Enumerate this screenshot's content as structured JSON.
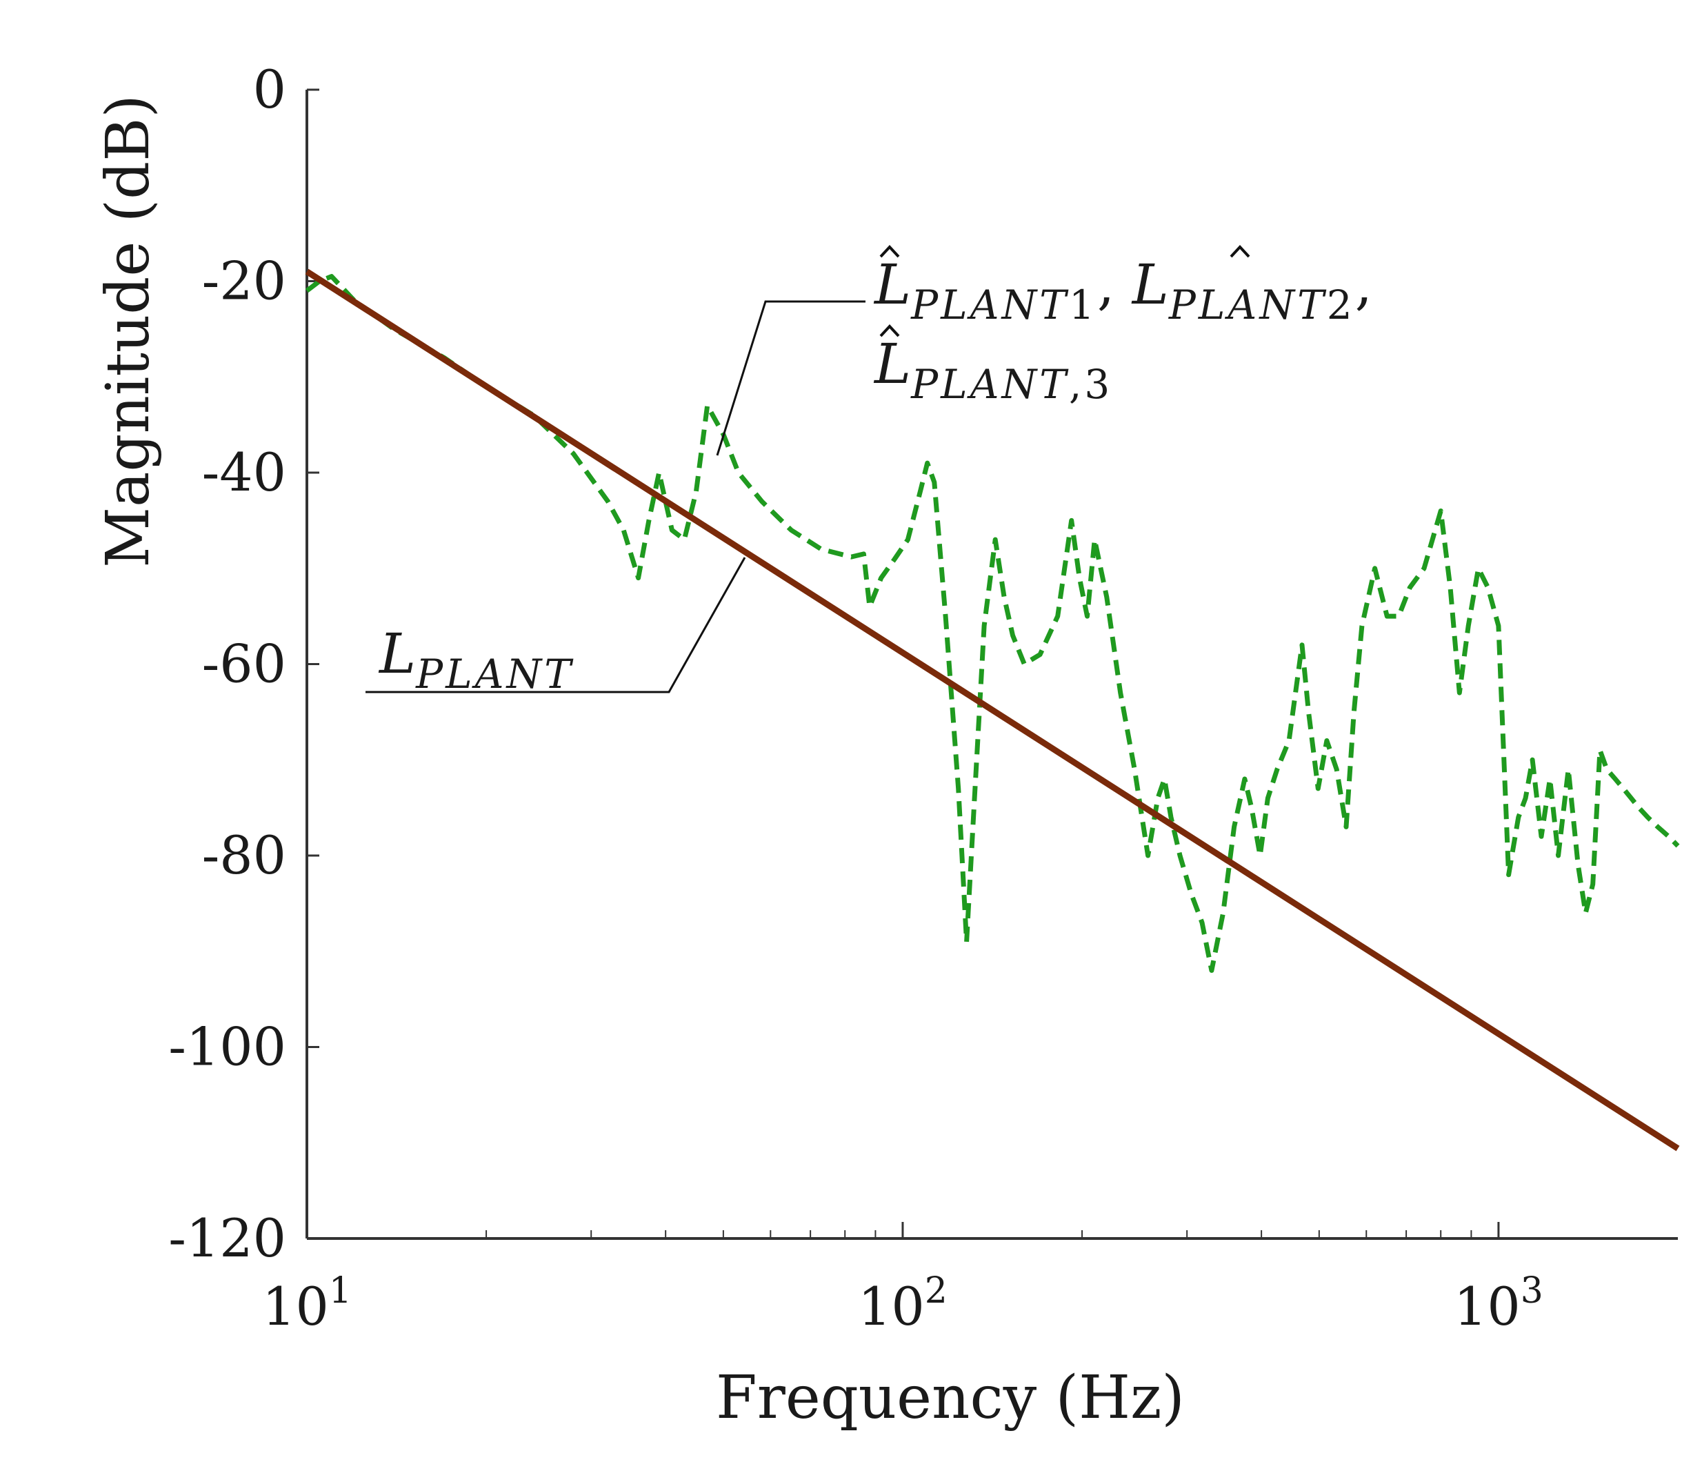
{
  "chart_data": {
    "type": "line",
    "xscale": "log",
    "xlim": [
      10,
      2000
    ],
    "ylim": [
      -120,
      0
    ],
    "xlabel": "Frequency  (Hz)",
    "ylabel": "Magnitude (dB)",
    "x_ticks": [
      {
        "value": 10,
        "base": "10",
        "exp": "1"
      },
      {
        "value": 100,
        "base": "10",
        "exp": "2"
      },
      {
        "value": 1000,
        "base": "10",
        "exp": "3"
      }
    ],
    "y_ticks": [
      {
        "value": 0,
        "label": "0"
      },
      {
        "value": -20,
        "label": "-20"
      },
      {
        "value": -40,
        "label": "-40"
      },
      {
        "value": -60,
        "label": "-60"
      },
      {
        "value": -80,
        "label": "-80"
      },
      {
        "value": -100,
        "label": "-100"
      },
      {
        "value": -120,
        "label": "-120"
      }
    ],
    "series": [
      {
        "name": "L_PLANT",
        "color": "#7a2a0a",
        "style": "solid",
        "x": [
          10,
          2000
        ],
        "y": [
          -19,
          -110.6
        ]
      },
      {
        "name": "L̂_PLANT1, L̂_PLANT2, L̂_PLANT,3",
        "color": "#1f9a1f",
        "style": "dashed",
        "x": [
          10,
          10.5,
          11,
          12,
          14,
          17,
          20,
          24,
          28,
          32,
          34,
          36,
          37.5,
          39,
          41,
          43,
          45,
          47,
          50,
          53,
          58,
          65,
          73,
          82,
          86,
          88,
          92,
          97,
          102,
          107,
          110,
          113,
          118,
          124,
          128,
          132,
          137,
          143,
          148,
          153,
          160,
          170,
          182,
          192,
          198,
          204,
          210,
          220,
          232,
          245,
          258,
          268,
          275,
          282,
          292,
          305,
          318,
          330,
          345,
          360,
          375,
          385,
          398,
          410,
          425,
          445,
          468,
          480,
          498,
          515,
          535,
          555,
          572,
          590,
          620,
          650,
          680,
          710,
          750,
          800,
          830,
          860,
          890,
          925,
          960,
          1000,
          1040,
          1080,
          1110,
          1140,
          1180,
          1220,
          1260,
          1310,
          1360,
          1400,
          1440,
          1480,
          1520,
          1570,
          1620,
          1670,
          1720,
          1780,
          1850,
          1930,
          2000
        ],
        "y": [
          -21,
          -20,
          -19.5,
          -22,
          -25,
          -28,
          -31,
          -34,
          -38,
          -43,
          -46,
          -51,
          -45,
          -40,
          -46,
          -47,
          -42,
          -33,
          -36,
          -40,
          -43,
          -46,
          -48,
          -48.8,
          -48.5,
          -54,
          -51,
          -49,
          -47,
          -42,
          -39,
          -41,
          -55,
          -73,
          -89,
          -74,
          -56,
          -47,
          -53,
          -57,
          -60,
          -59,
          -55,
          -45,
          -51,
          -55,
          -47,
          -53,
          -63,
          -71,
          -80,
          -74,
          -72,
          -76,
          -80,
          -84,
          -87,
          -92,
          -86,
          -77,
          -72,
          -75,
          -80,
          -74,
          -71,
          -68,
          -58,
          -65,
          -73,
          -68,
          -71,
          -77,
          -65,
          -56,
          -50,
          -55,
          -55,
          -52,
          -50,
          -44,
          -52,
          -63,
          -56,
          -50,
          -52,
          -56,
          -82,
          -76,
          -74,
          -70,
          -78,
          -72,
          -80,
          -71,
          -81,
          -86,
          -83,
          -69,
          -71,
          -72,
          -73,
          -74,
          -75,
          -76,
          -77,
          -78,
          -79
        ]
      }
    ],
    "annotations": [
      {
        "name": "estimates-label",
        "lines": [
          "L̂PLANT1, L̂PLANT2,",
          "L̂PLANT,3"
        ]
      },
      {
        "name": "plant-label",
        "text": "LPLANT"
      }
    ]
  },
  "labels": {
    "annot_estimates_1a": "L",
    "annot_estimates_1a_sub": "PLANT",
    "annot_estimates_1a_num": "1",
    "annot_estimates_sep1": ", ",
    "annot_estimates_1b": "L",
    "annot_estimates_1b_sub": "PLANT",
    "annot_estimates_1b_num": "2",
    "annot_estimates_sep2": ",",
    "annot_estimates_2": "L",
    "annot_estimates_2_sub": "PLANT",
    "annot_estimates_2_num": ",3",
    "annot_plant": "L",
    "annot_plant_sub": "PLANT"
  },
  "colors": {
    "axis": "#333333",
    "plant_line": "#7a2a0a",
    "estimate_line": "#1f9a1f",
    "leader": "#111111"
  }
}
